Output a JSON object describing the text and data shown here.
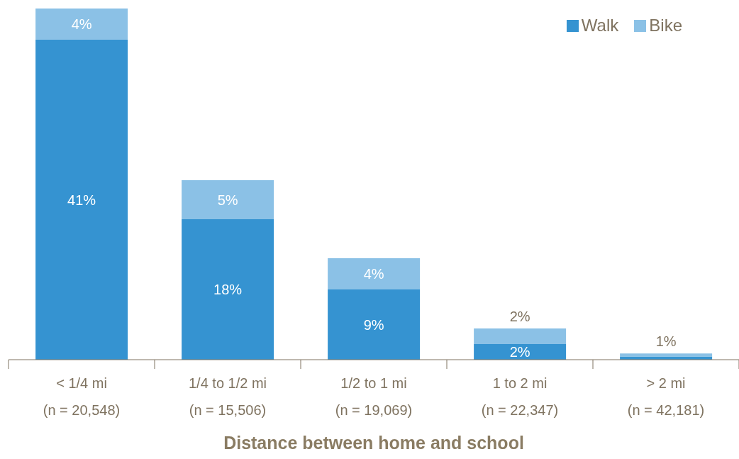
{
  "chart_data": {
    "type": "bar",
    "stacked": true,
    "xlabel": "Distance between home and school",
    "categories": [
      "< 1/4 mi\n(n = 20,548)",
      "1/4 to 1/2 mi\n(n = 15,506)",
      "1/2 to 1 mi\n(n = 19,069)",
      "1 to 2 mi\n(n = 22,347)",
      "> 2 mi\n(n = 42,181)"
    ],
    "series": [
      {
        "name": "Walk",
        "color": "#3593d1",
        "values": [
          41,
          18,
          9,
          2,
          0.4
        ],
        "value_labels": [
          "41%",
          "18%",
          "9%",
          "2%",
          null
        ]
      },
      {
        "name": "Bike",
        "color": "#8bc1e6",
        "values": [
          4,
          5,
          4,
          2,
          0.4
        ],
        "value_labels": [
          "4%",
          "5%",
          "4%",
          "2%",
          null
        ]
      }
    ],
    "totals": [
      null,
      null,
      null,
      null,
      "1%"
    ],
    "legend": "top right",
    "grid": false
  }
}
